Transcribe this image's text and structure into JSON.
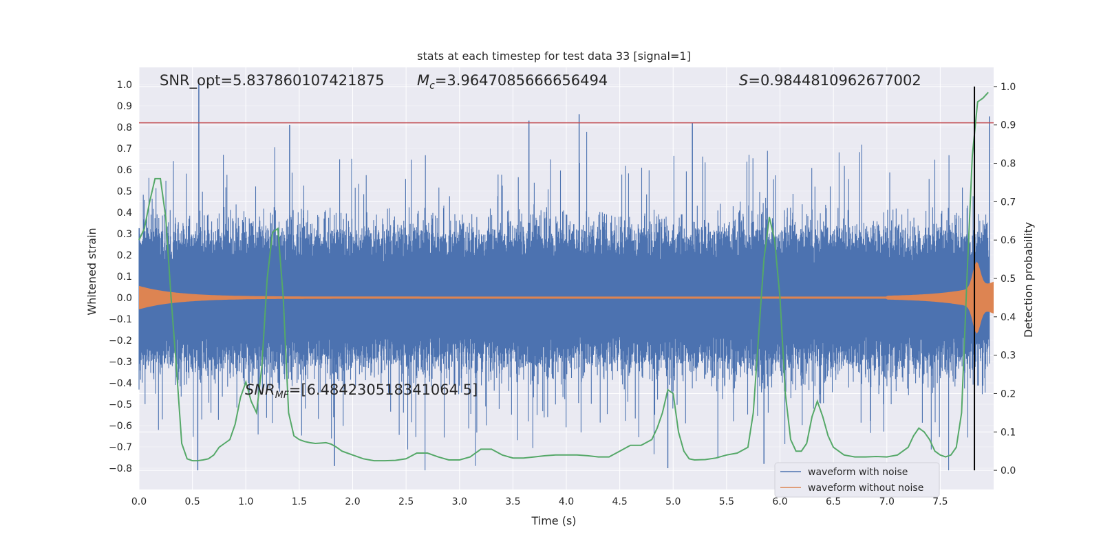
{
  "chart_data": {
    "type": "line",
    "title": "stats at each timestep for test data 33 [signal=1]",
    "xlabel": "Time (s)",
    "ylabel": "Whitened strain",
    "y2label": "Detection probability",
    "xlim": [
      0,
      8.0
    ],
    "ylim": [
      -0.9,
      1.08
    ],
    "y2lim": [
      -0.05,
      1.05
    ],
    "xticks": [
      "0.0",
      "0.5",
      "1.0",
      "1.5",
      "2.0",
      "2.5",
      "3.0",
      "3.5",
      "4.0",
      "4.5",
      "5.0",
      "5.5",
      "6.0",
      "6.5",
      "7.0",
      "7.5"
    ],
    "xtick_values": [
      0,
      0.5,
      1,
      1.5,
      2,
      2.5,
      3,
      3.5,
      4,
      4.5,
      5,
      5.5,
      6,
      6.5,
      7,
      7.5
    ],
    "yticks": [
      "1.0",
      "0.9",
      "0.8",
      "0.7",
      "0.6",
      "0.5",
      "0.4",
      "0.3",
      "0.2",
      "0.1",
      "0.0",
      "−0.1",
      "−0.2",
      "−0.3",
      "−0.4",
      "−0.5",
      "−0.6",
      "−0.7",
      "−0.8"
    ],
    "ytick_values": [
      1.0,
      0.9,
      0.8,
      0.7,
      0.6,
      0.5,
      0.4,
      0.3,
      0.2,
      0.1,
      0.0,
      -0.1,
      -0.2,
      -0.3,
      -0.4,
      -0.5,
      -0.6,
      -0.7,
      -0.8
    ],
    "y2ticks": [
      "1.0",
      "0.9",
      "0.8",
      "0.7",
      "0.6",
      "0.5",
      "0.4",
      "0.3",
      "0.2",
      "0.1",
      "0.0"
    ],
    "y2tick_values": [
      1.0,
      0.9,
      0.8,
      0.7,
      0.6,
      0.5,
      0.4,
      0.3,
      0.2,
      0.1,
      0.0
    ],
    "grid": true,
    "legend_position": "lower-right",
    "annotations": {
      "snr_opt": "SNR_opt=5.837860107421875",
      "mc_symbol": "M",
      "mc_sub": "c",
      "mc_value": "=3.9647085666656494",
      "s_symbol": "S",
      "s_value": "=0.9844810962677002",
      "snr_mf_symbol": "SNR",
      "snr_mf_sub": "MF",
      "snr_mf_value": "=[6.484230518341064 5]"
    },
    "threshold_line": {
      "y": 0.82
    },
    "detection_time": 7.82,
    "series": [
      {
        "name": "waveform with noise",
        "color": "#4c72b0"
      },
      {
        "name": "waveform without noise",
        "color": "#dd8452"
      },
      {
        "color": "#55a868",
        "axis": "right",
        "x": [
          0.0,
          0.05,
          0.1,
          0.15,
          0.2,
          0.25,
          0.3,
          0.35,
          0.4,
          0.45,
          0.5,
          0.55,
          0.6,
          0.65,
          0.7,
          0.75,
          0.8,
          0.85,
          0.9,
          0.95,
          1.0,
          1.05,
          1.1,
          1.15,
          1.2,
          1.25,
          1.3,
          1.35,
          1.4,
          1.45,
          1.5,
          1.55,
          1.6,
          1.65,
          1.7,
          1.75,
          1.8,
          1.85,
          1.9,
          1.95,
          2.0,
          2.1,
          2.2,
          2.3,
          2.4,
          2.5,
          2.6,
          2.7,
          2.8,
          2.9,
          3.0,
          3.1,
          3.2,
          3.3,
          3.4,
          3.5,
          3.6,
          3.7,
          3.8,
          3.9,
          4.0,
          4.1,
          4.2,
          4.3,
          4.4,
          4.5,
          4.6,
          4.7,
          4.8,
          4.85,
          4.9,
          4.95,
          5.0,
          5.05,
          5.1,
          5.15,
          5.2,
          5.3,
          5.4,
          5.5,
          5.6,
          5.7,
          5.75,
          5.8,
          5.85,
          5.9,
          5.95,
          6.0,
          6.05,
          6.1,
          6.15,
          6.2,
          6.25,
          6.3,
          6.35,
          6.4,
          6.45,
          6.5,
          6.55,
          6.6,
          6.7,
          6.8,
          6.9,
          7.0,
          7.1,
          7.2,
          7.25,
          7.3,
          7.35,
          7.4,
          7.45,
          7.5,
          7.55,
          7.6,
          7.65,
          7.7,
          7.75,
          7.8,
          7.85,
          7.9,
          7.95
        ],
        "values": [
          0.6,
          0.63,
          0.7,
          0.76,
          0.76,
          0.66,
          0.45,
          0.27,
          0.07,
          0.03,
          0.025,
          0.025,
          0.027,
          0.03,
          0.04,
          0.06,
          0.07,
          0.08,
          0.12,
          0.19,
          0.23,
          0.18,
          0.15,
          0.27,
          0.5,
          0.62,
          0.63,
          0.45,
          0.15,
          0.09,
          0.08,
          0.075,
          0.072,
          0.07,
          0.071,
          0.072,
          0.068,
          0.06,
          0.05,
          0.045,
          0.04,
          0.03,
          0.025,
          0.025,
          0.026,
          0.03,
          0.045,
          0.045,
          0.035,
          0.027,
          0.027,
          0.035,
          0.055,
          0.055,
          0.04,
          0.032,
          0.032,
          0.035,
          0.038,
          0.04,
          0.04,
          0.04,
          0.038,
          0.035,
          0.035,
          0.05,
          0.065,
          0.065,
          0.08,
          0.11,
          0.15,
          0.21,
          0.2,
          0.1,
          0.05,
          0.03,
          0.027,
          0.028,
          0.032,
          0.04,
          0.045,
          0.06,
          0.15,
          0.35,
          0.55,
          0.66,
          0.6,
          0.45,
          0.2,
          0.08,
          0.05,
          0.05,
          0.07,
          0.14,
          0.18,
          0.14,
          0.09,
          0.06,
          0.05,
          0.04,
          0.035,
          0.035,
          0.036,
          0.035,
          0.04,
          0.06,
          0.09,
          0.11,
          0.1,
          0.08,
          0.05,
          0.04,
          0.035,
          0.04,
          0.06,
          0.15,
          0.5,
          0.82,
          0.96,
          0.97,
          0.985
        ]
      }
    ]
  }
}
